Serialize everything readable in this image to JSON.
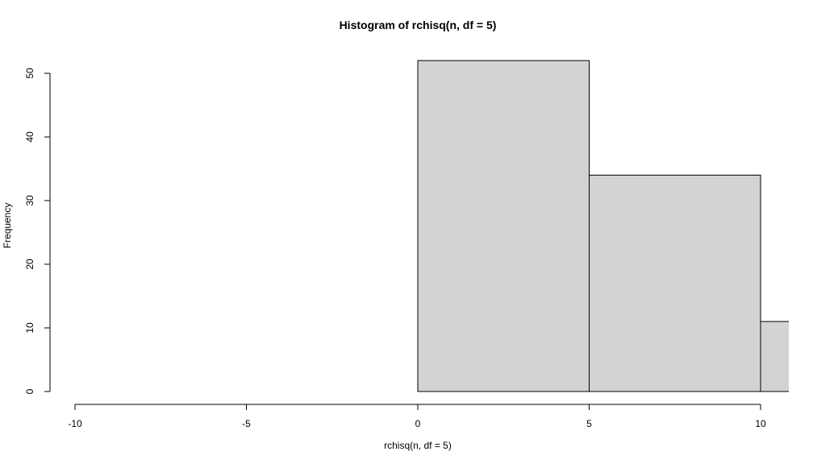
{
  "chart_data": {
    "type": "bar",
    "title": "Histogram of rchisq(n, df = 5)",
    "xlabel": "rchisq(n, df = 5)",
    "ylabel": "Frequency",
    "xlim": [
      -10,
      10.8
    ],
    "ylim": [
      0,
      52
    ],
    "x_ticks": [
      -10,
      -5,
      0,
      5,
      10
    ],
    "x_tick_labels": [
      "-10",
      "-5",
      "0",
      "5",
      "10"
    ],
    "y_ticks": [
      0,
      10,
      20,
      30,
      40,
      50
    ],
    "y_tick_labels": [
      "0",
      "10",
      "20",
      "30",
      "40",
      "50"
    ],
    "bins": [
      {
        "start": 0,
        "end": 5,
        "count": 52
      },
      {
        "start": 5,
        "end": 10,
        "count": 34
      },
      {
        "start": 10,
        "end": 15,
        "count": 11
      }
    ],
    "bar_color": "#d3d3d3",
    "grid": false,
    "legend": "none"
  }
}
